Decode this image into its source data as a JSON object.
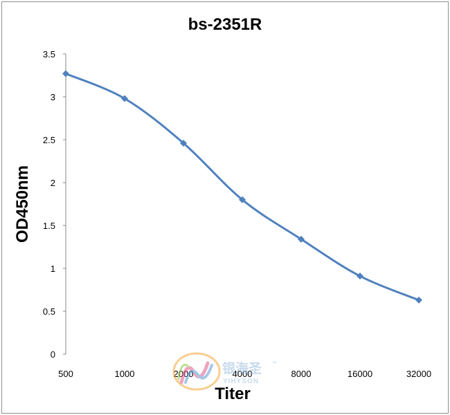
{
  "chart_data": {
    "type": "line",
    "title": "bs-2351R",
    "xlabel": "Titer",
    "ylabel": "OD450nm",
    "categories": [
      "500",
      "1000",
      "2000",
      "4000",
      "8000",
      "16000",
      "32000"
    ],
    "series": [
      {
        "values": [
          3.27,
          2.98,
          2.46,
          1.8,
          1.34,
          0.91,
          0.63
        ]
      }
    ],
    "ylim": [
      0,
      3.5
    ],
    "yticks": [
      "0",
      "0.5",
      "1",
      "1.5",
      "2",
      "2.5",
      "3",
      "3.5"
    ],
    "grid": false,
    "legend": "none",
    "line_color": "#4f81bd",
    "marker": "diamond"
  },
  "watermark": {
    "cn": "银海圣",
    "en": "YIHYSON",
    "tm": "™",
    "colors": [
      "#f4a636",
      "#e05a8a",
      "#5a9bd5",
      "#8cc63f"
    ]
  }
}
